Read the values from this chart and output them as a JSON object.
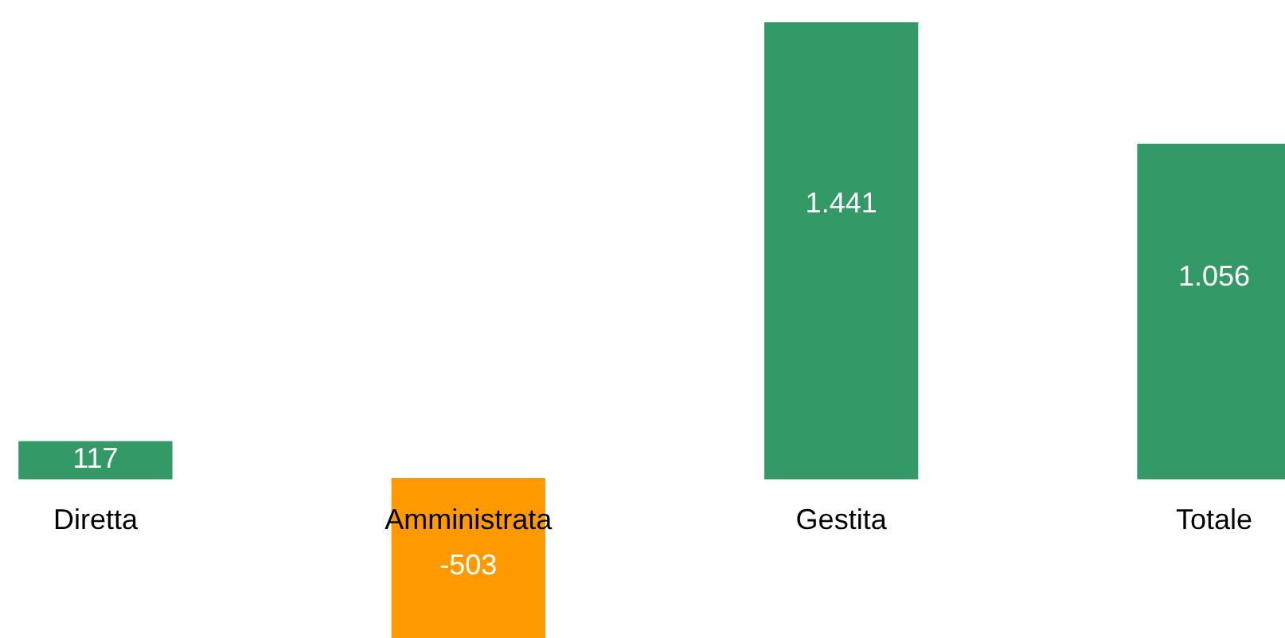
{
  "chart_data": {
    "type": "bar",
    "categories": [
      "Diretta",
      "Amministrata",
      "Gestita",
      "Totale"
    ],
    "values": [
      117,
      -503,
      1441,
      1056
    ],
    "colors": [
      "#339966",
      "#ff9900",
      "#339966",
      "#339966"
    ],
    "value_labels": [
      "117",
      "-503",
      "1.441",
      "1.056"
    ],
    "grid": false,
    "legend": false
  }
}
